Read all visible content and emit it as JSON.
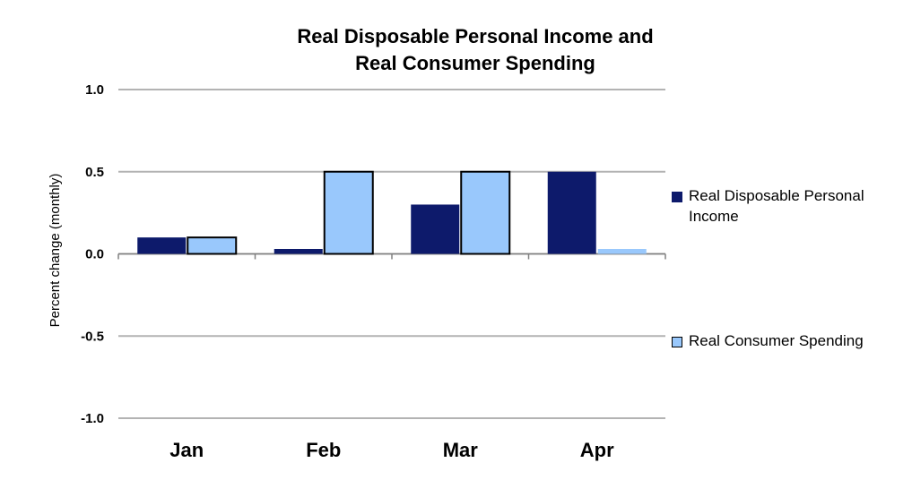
{
  "chart_data": {
    "type": "bar",
    "title_lines": [
      "Real Disposable Personal Income and",
      "Real Consumer Spending"
    ],
    "xlabel": "",
    "ylabel": "Percent change (monthly)",
    "categories": [
      "Jan",
      "Feb",
      "Mar",
      "Apr"
    ],
    "ylim": [
      -1.0,
      1.0
    ],
    "yticks": [
      1.0,
      0.5,
      0.0,
      -0.5,
      -1.0
    ],
    "ytick_labels": [
      "1.0",
      "0.5",
      "0.0",
      "-0.5",
      "-1.0"
    ],
    "grid": true,
    "legend_position": "right",
    "series": [
      {
        "name": "Real Disposable Personal Income",
        "values": [
          0.1,
          0.03,
          0.3,
          0.5
        ],
        "color": "#0d1a6b"
      },
      {
        "name": "Real Consumer Spending",
        "values": [
          0.1,
          0.5,
          0.5,
          0.03
        ],
        "color": "#99c8fc"
      }
    ]
  }
}
